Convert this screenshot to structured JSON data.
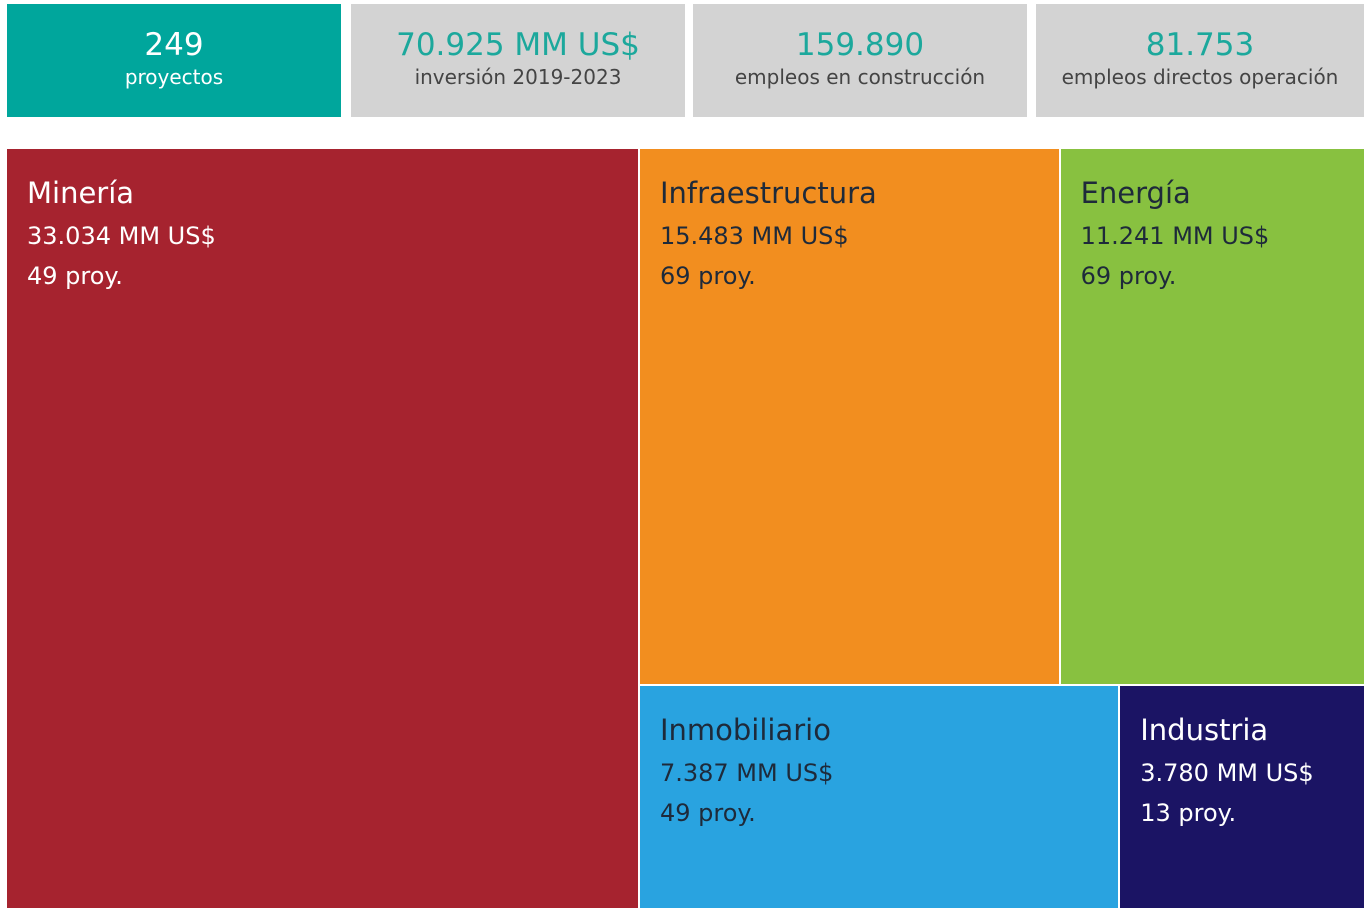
{
  "kpis": [
    {
      "value": 249,
      "caption": "proyectos"
    },
    {
      "value": "70.925 MM US$",
      "caption": "inversión 2019-2023"
    },
    {
      "value": "159.890",
      "caption": "empleos en construcción"
    },
    {
      "value": "81.753",
      "caption": "empleos directos operación"
    }
  ],
  "chart_data": {
    "type": "treemap",
    "categories": [
      "Minería",
      "Infraestructura",
      "Energía",
      "Inmobiliario",
      "Industria"
    ],
    "values": [
      33034,
      15483,
      11241,
      7387,
      3780
    ],
    "value_labels": [
      "33.034 MM US$",
      "15.483 MM US$",
      "11.241 MM US$",
      "7.387 MM US$",
      "3.780 MM US$"
    ],
    "project_labels": [
      "49 proy.",
      "69 proy.",
      "69 proy.",
      "49 proy.",
      "13 proy."
    ],
    "colors": [
      "#a6232f",
      "#f28e1f",
      "#88c140",
      "#29a3e0",
      "#1b1464"
    ]
  }
}
